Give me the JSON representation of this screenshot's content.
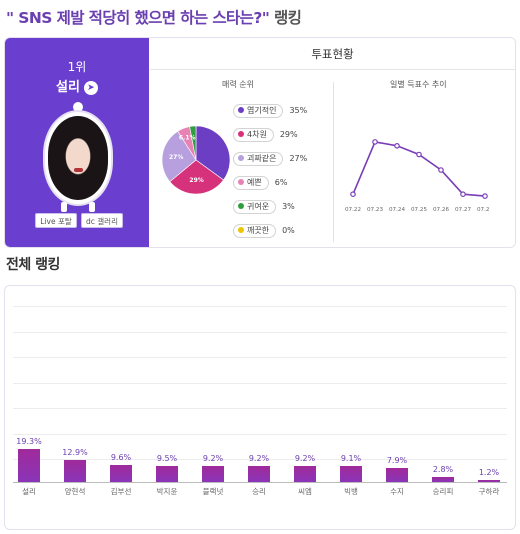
{
  "page_title": {
    "main": "\" SNS 제발 적당히 했으면 하는 스타는?\"",
    "suffix": " 랭킹"
  },
  "rank_card": {
    "rank": "1위",
    "name": "설리",
    "arrow_icon": "chevron-right-icon",
    "live_button": "Live 포탈",
    "gallery_button": "dc 갤러리"
  },
  "vote": {
    "heading": "투표현황",
    "charm_heading": "매력 순위",
    "daily_heading": "일별 득표수 추이",
    "pie": [
      {
        "label": "엽기적인",
        "pct": 35,
        "pct_text": "35%",
        "color": "#6b3ec4"
      },
      {
        "label": "4차원",
        "pct": 29,
        "pct_text": "29%",
        "color": "#d6327c"
      },
      {
        "label": "괴짜같은",
        "pct": 27,
        "pct_text": "27%",
        "color": "#b7a0dd"
      },
      {
        "label": "예쁜",
        "pct": 6,
        "pct_text": "6%",
        "color": "#e682b4"
      },
      {
        "label": "귀여운",
        "pct": 3,
        "pct_text": "3%",
        "color": "#2e9e3e"
      },
      {
        "label": "깨끗한",
        "pct": 0,
        "pct_text": "0%",
        "color": "#f0c400"
      }
    ],
    "pie_labels": [
      "6.1%",
      "27%",
      "29%"
    ],
    "daily_dates": [
      "07.22",
      "07.23",
      "07.24",
      "07.25",
      "07.26",
      "07.27",
      "07.28"
    ],
    "daily_values": [
      6,
      60,
      56,
      47,
      31,
      6,
      4
    ]
  },
  "overall": {
    "heading": "전체 랭킹",
    "bars": [
      {
        "name": "설리",
        "value": 19.3,
        "value_text": "19.3%"
      },
      {
        "name": "양현석",
        "value": 12.9,
        "value_text": "12.9%"
      },
      {
        "name": "김부선",
        "value": 9.6,
        "value_text": "9.6%"
      },
      {
        "name": "박지윤",
        "value": 9.5,
        "value_text": "9.5%"
      },
      {
        "name": "블랙넛",
        "value": 9.2,
        "value_text": "9.2%"
      },
      {
        "name": "승리",
        "value": 9.2,
        "value_text": "9.2%"
      },
      {
        "name": "씨엠",
        "value": 9.2,
        "value_text": "9.2%"
      },
      {
        "name": "빅뱅",
        "value": 9.1,
        "value_text": "9.1%"
      },
      {
        "name": "수지",
        "value": 7.9,
        "value_text": "7.9%"
      },
      {
        "name": "승리피",
        "value": 2.8,
        "value_text": "2.8%"
      },
      {
        "name": "구하라",
        "value": 1.2,
        "value_text": "1.2%"
      }
    ]
  },
  "chart_data": [
    {
      "type": "pie",
      "title": "매력 순위",
      "categories": [
        "엽기적인",
        "4차원",
        "괴짜같은",
        "예쁜",
        "귀여운",
        "깨끗한"
      ],
      "values": [
        35,
        29,
        27,
        6,
        3,
        0
      ]
    },
    {
      "type": "line",
      "title": "일별 득표수 추이",
      "x": [
        "07.22",
        "07.23",
        "07.24",
        "07.25",
        "07.26",
        "07.27",
        "07.28"
      ],
      "values": [
        6,
        60,
        56,
        47,
        31,
        6,
        4
      ]
    },
    {
      "type": "bar",
      "title": "전체 랭킹",
      "categories": [
        "설리",
        "양현석",
        "김부선",
        "박지윤",
        "블랙넛",
        "승리",
        "씨엠",
        "빅뱅",
        "수지",
        "승리피",
        "구하라"
      ],
      "values": [
        19.3,
        12.9,
        9.6,
        9.5,
        9.2,
        9.2,
        9.2,
        9.1,
        7.9,
        2.8,
        1.2
      ],
      "ylim": [
        0,
        60
      ]
    }
  ]
}
